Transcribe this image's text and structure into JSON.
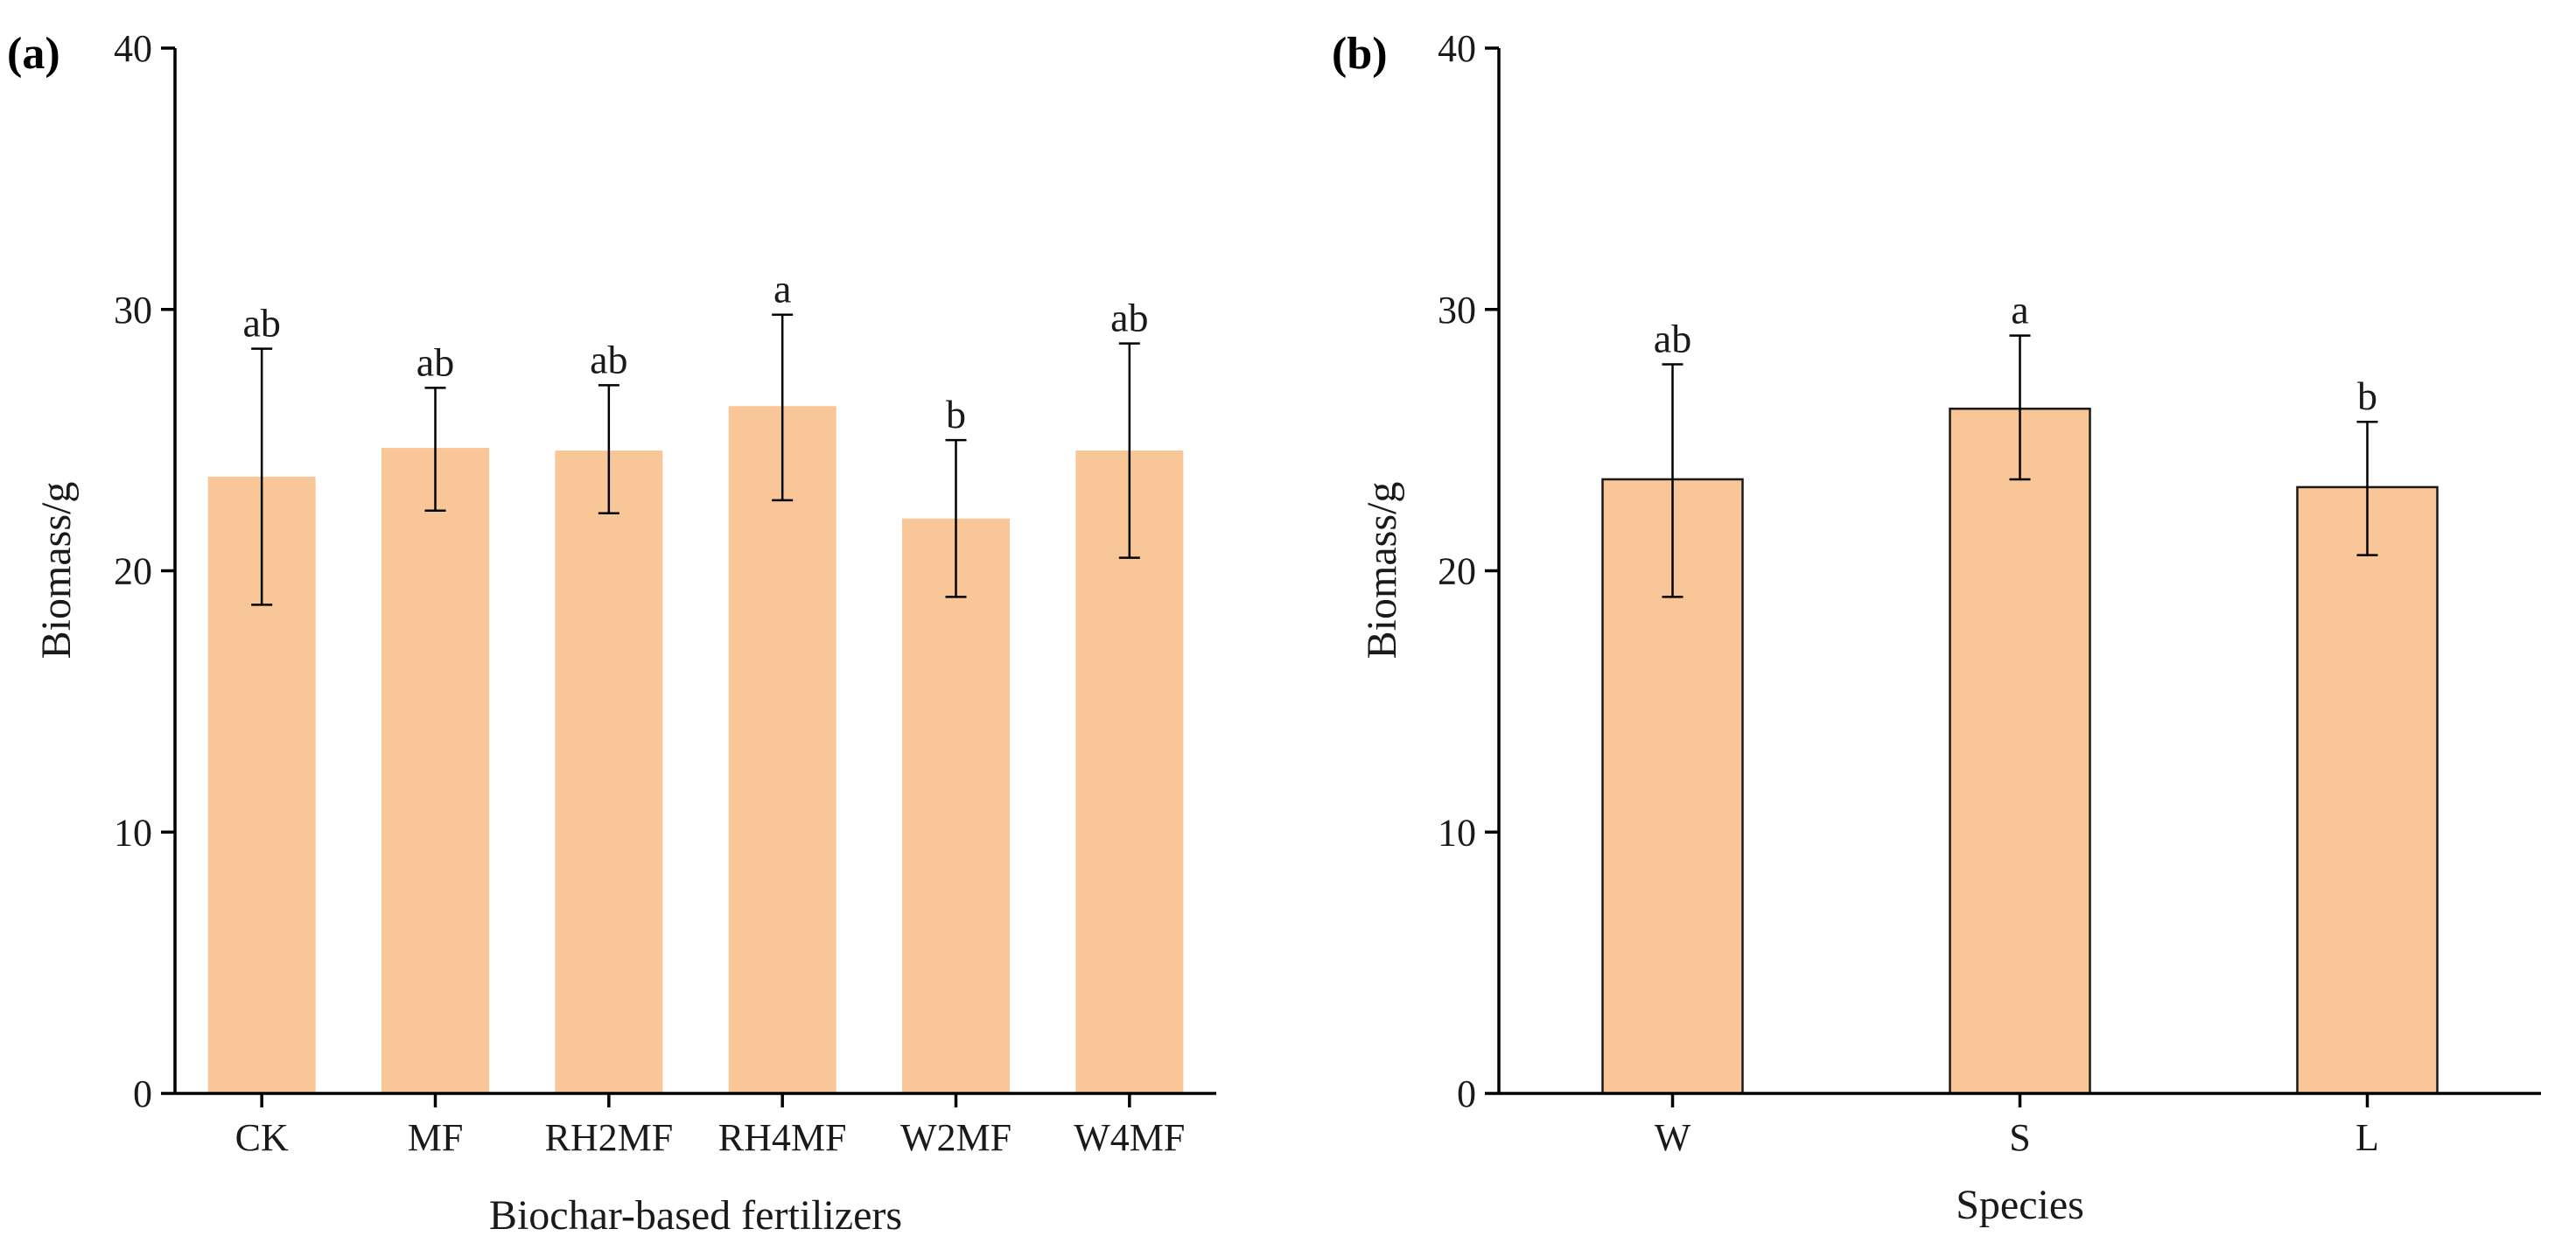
{
  "chart_data": [
    {
      "type": "bar",
      "panel_label": "(a)",
      "title": "",
      "xlabel": "Biochar-based fertilizers",
      "ylabel": "Biomass/g",
      "ylim": [
        0,
        40
      ],
      "yticks": [
        0,
        10,
        20,
        30,
        40
      ],
      "categories": [
        "CK",
        "MF",
        "RH2MF",
        "RH4MF",
        "W2MF",
        "W4MF"
      ],
      "values": [
        23.6,
        24.7,
        24.6,
        26.3,
        22.0,
        24.6
      ],
      "error_low": [
        18.7,
        22.3,
        22.2,
        22.7,
        19.0,
        20.5
      ],
      "error_high": [
        28.5,
        27.0,
        27.1,
        29.8,
        25.0,
        28.7
      ],
      "significance": [
        "ab",
        "ab",
        "ab",
        "a",
        "b",
        "ab"
      ],
      "bar_color": "#F9C697",
      "bar_outline": false
    },
    {
      "type": "bar",
      "panel_label": "(b)",
      "title": "",
      "xlabel": "Species",
      "ylabel": "Biomass/g",
      "ylim": [
        0,
        40
      ],
      "yticks": [
        0,
        10,
        20,
        30,
        40
      ],
      "categories": [
        "W",
        "S",
        "L"
      ],
      "values": [
        23.5,
        26.2,
        23.2
      ],
      "error_low": [
        19.0,
        23.5,
        20.6
      ],
      "error_high": [
        27.9,
        29.0,
        25.7
      ],
      "significance": [
        "ab",
        "a",
        "b"
      ],
      "bar_color": "#F9C697",
      "bar_outline": true
    }
  ]
}
